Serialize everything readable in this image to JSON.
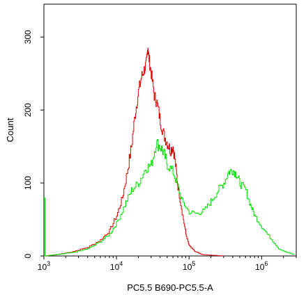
{
  "chart_data": {
    "type": "line",
    "title": "",
    "xlabel": "PC5.5 B690-PC5.5-A",
    "ylabel": "Count",
    "xscale": "log",
    "xlim": [
      1000,
      3000000
    ],
    "ylim": [
      0,
      345
    ],
    "x_ticks": [
      {
        "value": 1000,
        "base": "10",
        "exp": "3"
      },
      {
        "value": 10000,
        "base": "10",
        "exp": "4"
      },
      {
        "value": 100000,
        "base": "10",
        "exp": "5"
      },
      {
        "value": 1000000,
        "base": "10",
        "exp": "6"
      }
    ],
    "y_ticks": [
      {
        "value": 0,
        "label": "0"
      },
      {
        "value": 100,
        "label": "100"
      },
      {
        "value": 200,
        "label": "200"
      },
      {
        "value": 300,
        "label": "300"
      }
    ],
    "grid": false,
    "legend": "none",
    "series": [
      {
        "color": "#e00000",
        "x": [
          1000,
          1500,
          2500,
          4000,
          6000,
          8000,
          10000,
          12000,
          14000,
          16000,
          18000,
          20000,
          22000,
          24000,
          26000,
          27000,
          28000,
          30000,
          33000,
          36000,
          40000,
          45000,
          50000,
          55000,
          60000,
          65000,
          70000,
          80000,
          90000,
          100000,
          120000,
          150000,
          200000,
          300000
        ],
        "y": [
          0,
          2,
          6,
          12,
          22,
          35,
          55,
          80,
          115,
          150,
          195,
          225,
          245,
          255,
          265,
          288,
          270,
          250,
          220,
          210,
          185,
          165,
          155,
          145,
          150,
          125,
          95,
          60,
          30,
          14,
          6,
          2,
          1,
          0
        ]
      },
      {
        "color": "#00e000",
        "x": [
          1000,
          1500,
          2500,
          4000,
          6000,
          8000,
          10000,
          13000,
          16000,
          20000,
          25000,
          30000,
          35000,
          40000,
          45000,
          50000,
          60000,
          70000,
          80000,
          100000,
          130000,
          160000,
          200000,
          250000,
          300000,
          350000,
          400000,
          450000,
          500000,
          600000,
          700000,
          800000,
          1000000,
          1300000,
          1700000,
          2200000,
          2800000
        ],
        "y": [
          0,
          2,
          5,
          10,
          20,
          30,
          45,
          70,
          90,
          100,
          120,
          125,
          155,
          150,
          140,
          125,
          115,
          95,
          75,
          60,
          58,
          62,
          75,
          90,
          100,
          115,
          118,
          112,
          100,
          90,
          70,
          55,
          40,
          25,
          10,
          5,
          2
        ]
      }
    ],
    "markers": [
      {
        "x": 1000,
        "y": 80,
        "color": "#00e000"
      }
    ]
  }
}
